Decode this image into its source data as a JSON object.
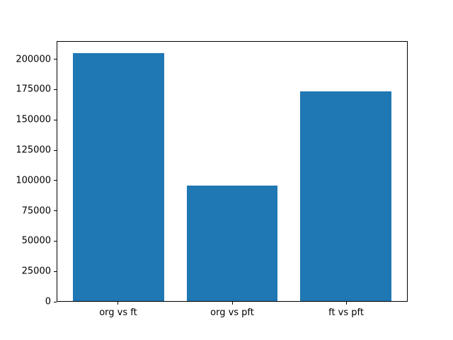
{
  "figure": {
    "background": "#ffffff"
  },
  "chart_data": {
    "type": "bar",
    "title": "",
    "xlabel": "",
    "ylabel": "",
    "categories": [
      "org vs ft",
      "org vs pft",
      "ft vs pft"
    ],
    "values": [
      205500,
      95500,
      173800
    ],
    "bar_color": "#1f77b4",
    "ylim": [
      0,
      215000
    ],
    "yticks": [
      0,
      25000,
      50000,
      75000,
      100000,
      125000,
      150000,
      175000,
      200000
    ],
    "xlim": [
      -0.54,
      2.54
    ],
    "bar_width": 0.8,
    "grid": false,
    "legend": "none"
  }
}
